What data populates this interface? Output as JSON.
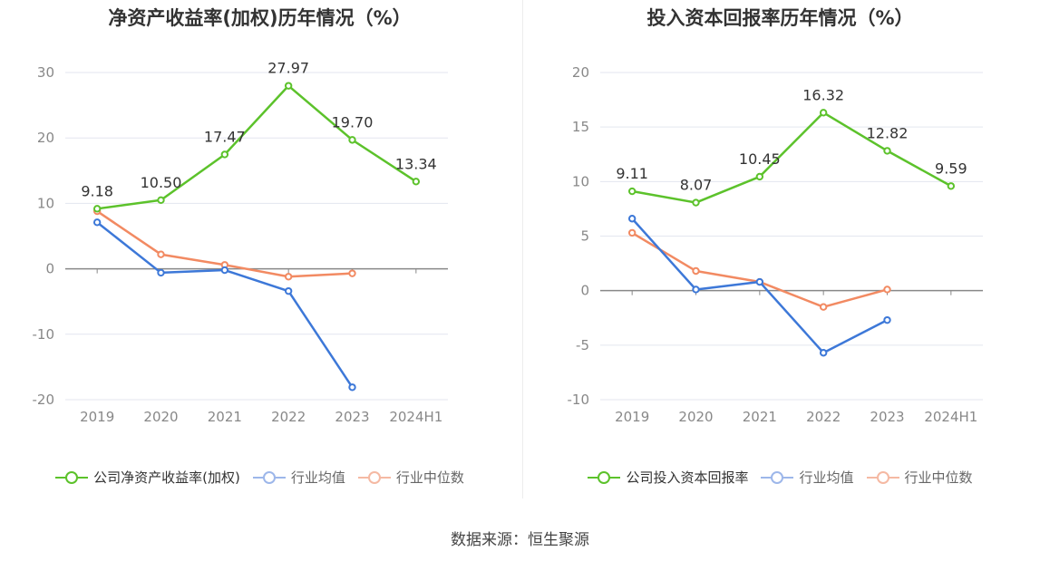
{
  "chart_data": [
    {
      "type": "line",
      "title": "净资产收益率(加权)历年情况（%）",
      "categories": [
        "2019",
        "2020",
        "2021",
        "2022",
        "2023",
        "2024H1"
      ],
      "ylim": [
        -20,
        30
      ],
      "yticks": [
        30,
        20,
        10,
        0,
        -10,
        -20
      ],
      "ytick_labels": [
        "30",
        "20",
        "10",
        "0",
        "-10",
        "-20"
      ],
      "grid": true,
      "legend_position": "bottom",
      "series": [
        {
          "name": "公司净资产收益率(加权)",
          "color": "#5cc22b",
          "values": [
            9.18,
            10.5,
            17.47,
            27.97,
            19.7,
            13.34
          ],
          "labels": [
            "9.18",
            "10.50",
            "17.47",
            "27.97",
            "19.70",
            "13.34"
          ]
        },
        {
          "name": "行业均值",
          "color": "#3d78d8",
          "values": [
            7.1,
            -0.6,
            -0.2,
            -3.4,
            -18.1,
            null
          ]
        },
        {
          "name": "行业中位数",
          "color": "#f28a62",
          "values": [
            8.8,
            2.2,
            0.6,
            -1.2,
            -0.7,
            null
          ]
        }
      ]
    },
    {
      "type": "line",
      "title": "投入资本回报率历年情况（%）",
      "categories": [
        "2019",
        "2020",
        "2021",
        "2022",
        "2023",
        "2024H1"
      ],
      "ylim": [
        -10,
        20
      ],
      "yticks": [
        20,
        15,
        10,
        5,
        0,
        -5,
        -10
      ],
      "ytick_labels": [
        "20",
        "15",
        "10",
        "5",
        "0",
        "-5",
        "-10"
      ],
      "grid": true,
      "legend_position": "bottom",
      "series": [
        {
          "name": "公司投入资本回报率",
          "color": "#5cc22b",
          "values": [
            9.11,
            8.07,
            10.45,
            16.32,
            12.82,
            9.59
          ],
          "labels": [
            "9.11",
            "8.07",
            "10.45",
            "16.32",
            "12.82",
            "9.59"
          ]
        },
        {
          "name": "行业均值",
          "color": "#3d78d8",
          "values": [
            6.6,
            0.1,
            0.8,
            -5.7,
            -2.7,
            null
          ]
        },
        {
          "name": "行业中位数",
          "color": "#f28a62",
          "values": [
            5.3,
            1.8,
            0.8,
            -1.5,
            0.1,
            null
          ]
        }
      ]
    }
  ],
  "legend_inactive_colors": [
    "#9db7ea",
    "#f5b9a3"
  ],
  "source_text": "数据来源：恒生聚源"
}
